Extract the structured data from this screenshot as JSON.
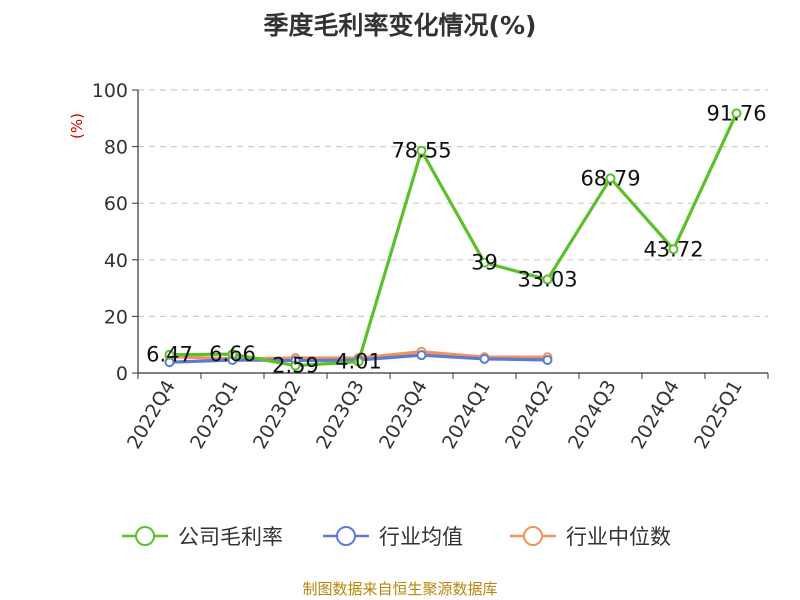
{
  "chart_data": {
    "type": "line",
    "title": "季度毛利率变化情况(%)",
    "ylabel": "(%)",
    "xlabel": "",
    "ylim": [
      0,
      100
    ],
    "yticks": [
      0,
      20,
      40,
      60,
      80,
      100
    ],
    "grid": true,
    "legend": "bottom",
    "categories": [
      "2022Q4",
      "2023Q1",
      "2023Q2",
      "2023Q3",
      "2023Q4",
      "2024Q1",
      "2024Q2",
      "2024Q3",
      "2024Q4",
      "2025Q1"
    ],
    "series": [
      {
        "name": "公司毛利率",
        "color": "#5cc02a",
        "values": [
          6.47,
          6.66,
          2.59,
          4.01,
          78.55,
          39,
          33.03,
          68.79,
          43.72,
          91.76
        ],
        "labels": [
          "6.47",
          "6.66",
          "2.59",
          "4.01",
          "78.55",
          "39",
          "33.03",
          "68.79",
          "43.72",
          "91.76"
        ]
      },
      {
        "name": "行业均值",
        "color": "#5b7bd5",
        "values": [
          3.8,
          4.6,
          4.4,
          4.6,
          6.3,
          5.0,
          4.6,
          null,
          null,
          null
        ]
      },
      {
        "name": "行业中位数",
        "color": "#f0935f",
        "values": [
          5.8,
          5.0,
          5.3,
          5.3,
          7.5,
          5.6,
          5.6,
          null,
          null,
          null
        ]
      }
    ]
  },
  "source_text": "制图数据来自恒生聚源数据库"
}
